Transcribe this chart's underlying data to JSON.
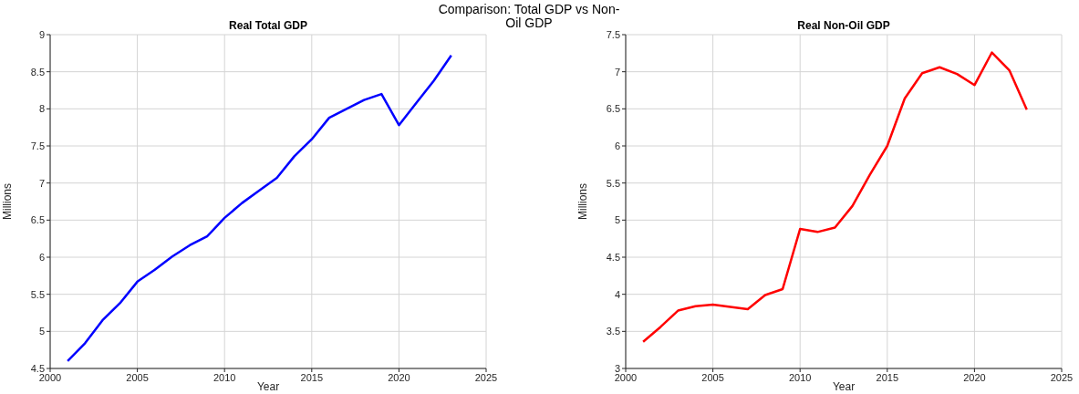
{
  "chart_data": [
    {
      "type": "line",
      "title": "Real Total GDP",
      "xlabel": "Year",
      "ylabel": "Millions",
      "annotations": [
        "Comparison: Total GDP vs Non-Oil GDP"
      ],
      "x": [
        2001,
        2002,
        2003,
        2004,
        2005,
        2006,
        2007,
        2008,
        2009,
        2010,
        2011,
        2012,
        2013,
        2014,
        2015,
        2016,
        2017,
        2018,
        2019,
        2020,
        2021,
        2022,
        2023
      ],
      "series": [
        {
          "color": "#0000ff",
          "values": [
            4.6,
            4.84,
            5.15,
            5.38,
            5.67,
            5.83,
            6.01,
            6.16,
            6.28,
            6.53,
            6.73,
            6.9,
            7.07,
            7.36,
            7.59,
            7.88,
            8.0,
            8.12,
            8.2,
            7.78,
            8.08,
            8.38,
            8.72
          ]
        }
      ],
      "xlim": [
        2000,
        2025
      ],
      "xticks": [
        2000,
        2005,
        2010,
        2015,
        2020,
        2025
      ],
      "ylim": [
        4.5,
        9
      ],
      "yticks": [
        4.5,
        5,
        5.5,
        6,
        6.5,
        7,
        7.5,
        8,
        8.5,
        9
      ],
      "grid": true,
      "marker": "none",
      "line_style": "solid"
    },
    {
      "type": "line",
      "title": "Real Non-Oil GDP",
      "xlabel": "Year",
      "ylabel": "Millions",
      "x": [
        2001,
        2002,
        2003,
        2004,
        2005,
        2006,
        2007,
        2008,
        2009,
        2010,
        2011,
        2012,
        2013,
        2014,
        2015,
        2016,
        2017,
        2018,
        2019,
        2020,
        2021,
        2022,
        2023
      ],
      "series": [
        {
          "color": "#ff0000",
          "values": [
            3.36,
            3.56,
            3.78,
            3.84,
            3.86,
            3.83,
            3.8,
            3.99,
            4.07,
            4.88,
            4.84,
            4.9,
            5.19,
            5.61,
            6.0,
            6.64,
            6.98,
            7.06,
            6.97,
            6.82,
            7.26,
            7.02,
            6.49
          ]
        }
      ],
      "xlim": [
        2000,
        2025
      ],
      "xticks": [
        2000,
        2005,
        2010,
        2015,
        2020,
        2025
      ],
      "ylim": [
        3,
        7.5
      ],
      "yticks": [
        3,
        3.5,
        4,
        4.5,
        5,
        5.5,
        6,
        6.5,
        7,
        7.5
      ],
      "grid": true,
      "marker": "none",
      "line_style": "solid"
    }
  ]
}
